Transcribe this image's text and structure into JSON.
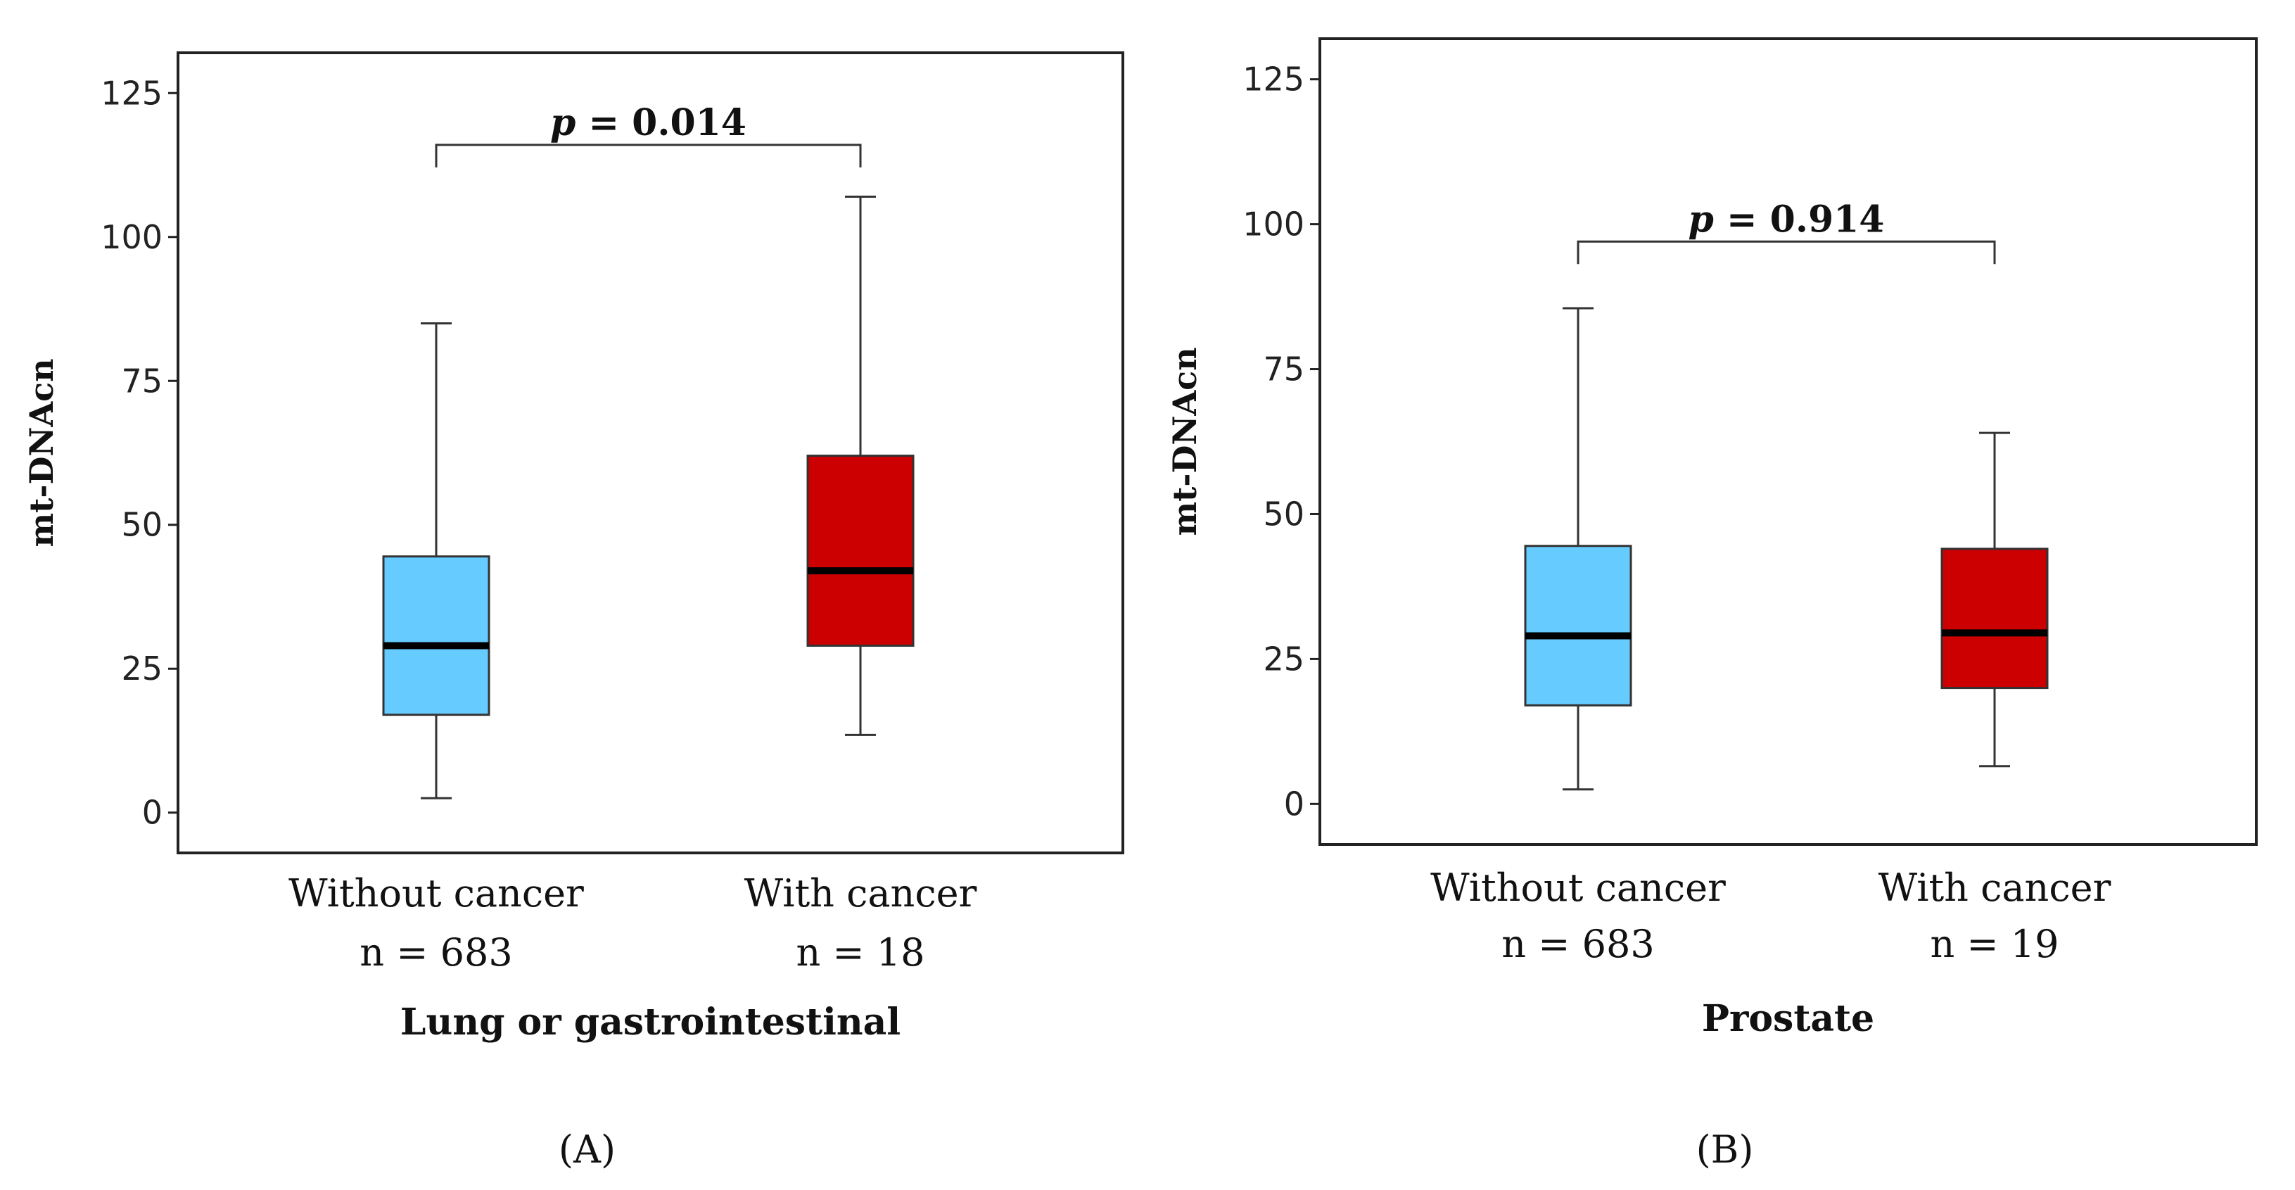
{
  "chart_data": [
    {
      "type": "box",
      "panel_label": "(A)",
      "xlabel": "Lung or gastrointestinal",
      "ylabel": "mt-DNAcn",
      "ylim": [
        -7,
        132
      ],
      "yticks": [
        "0",
        "25",
        "50",
        "75",
        "100",
        "125"
      ],
      "categories": [
        {
          "name": "Without cancer",
          "n": "n = 683"
        },
        {
          "name": "With cancer",
          "n": "n = 18"
        }
      ],
      "boxes": [
        {
          "whisker_low": 2.5,
          "q1": 17,
          "median": 29,
          "q3": 44.5,
          "whisker_high": 85,
          "color": "#66ccff"
        },
        {
          "whisker_low": 13.5,
          "q1": 29,
          "median": 42,
          "q3": 62,
          "whisker_high": 107,
          "color": "#cc0000"
        }
      ],
      "comparison": {
        "p_prefix": "p",
        "p_value": "= 0.014",
        "bracket_y": 116
      }
    },
    {
      "type": "box",
      "panel_label": "(B)",
      "xlabel": "Prostate",
      "ylabel": "mt-DNAcn",
      "ylim": [
        -7,
        132
      ],
      "yticks": [
        "0",
        "25",
        "50",
        "75",
        "100",
        "125"
      ],
      "categories": [
        {
          "name": "Without cancer",
          "n": "n = 683"
        },
        {
          "name": "With cancer",
          "n": "n = 19"
        }
      ],
      "boxes": [
        {
          "whisker_low": 2.5,
          "q1": 17,
          "median": 29,
          "q3": 44.5,
          "whisker_high": 85.5,
          "color": "#66ccff"
        },
        {
          "whisker_low": 6.5,
          "q1": 20,
          "median": 29.5,
          "q3": 44,
          "whisker_high": 64,
          "color": "#cc0000"
        }
      ],
      "comparison": {
        "p_prefix": "p",
        "p_value": "= 0.914",
        "bracket_y": 97
      }
    }
  ]
}
